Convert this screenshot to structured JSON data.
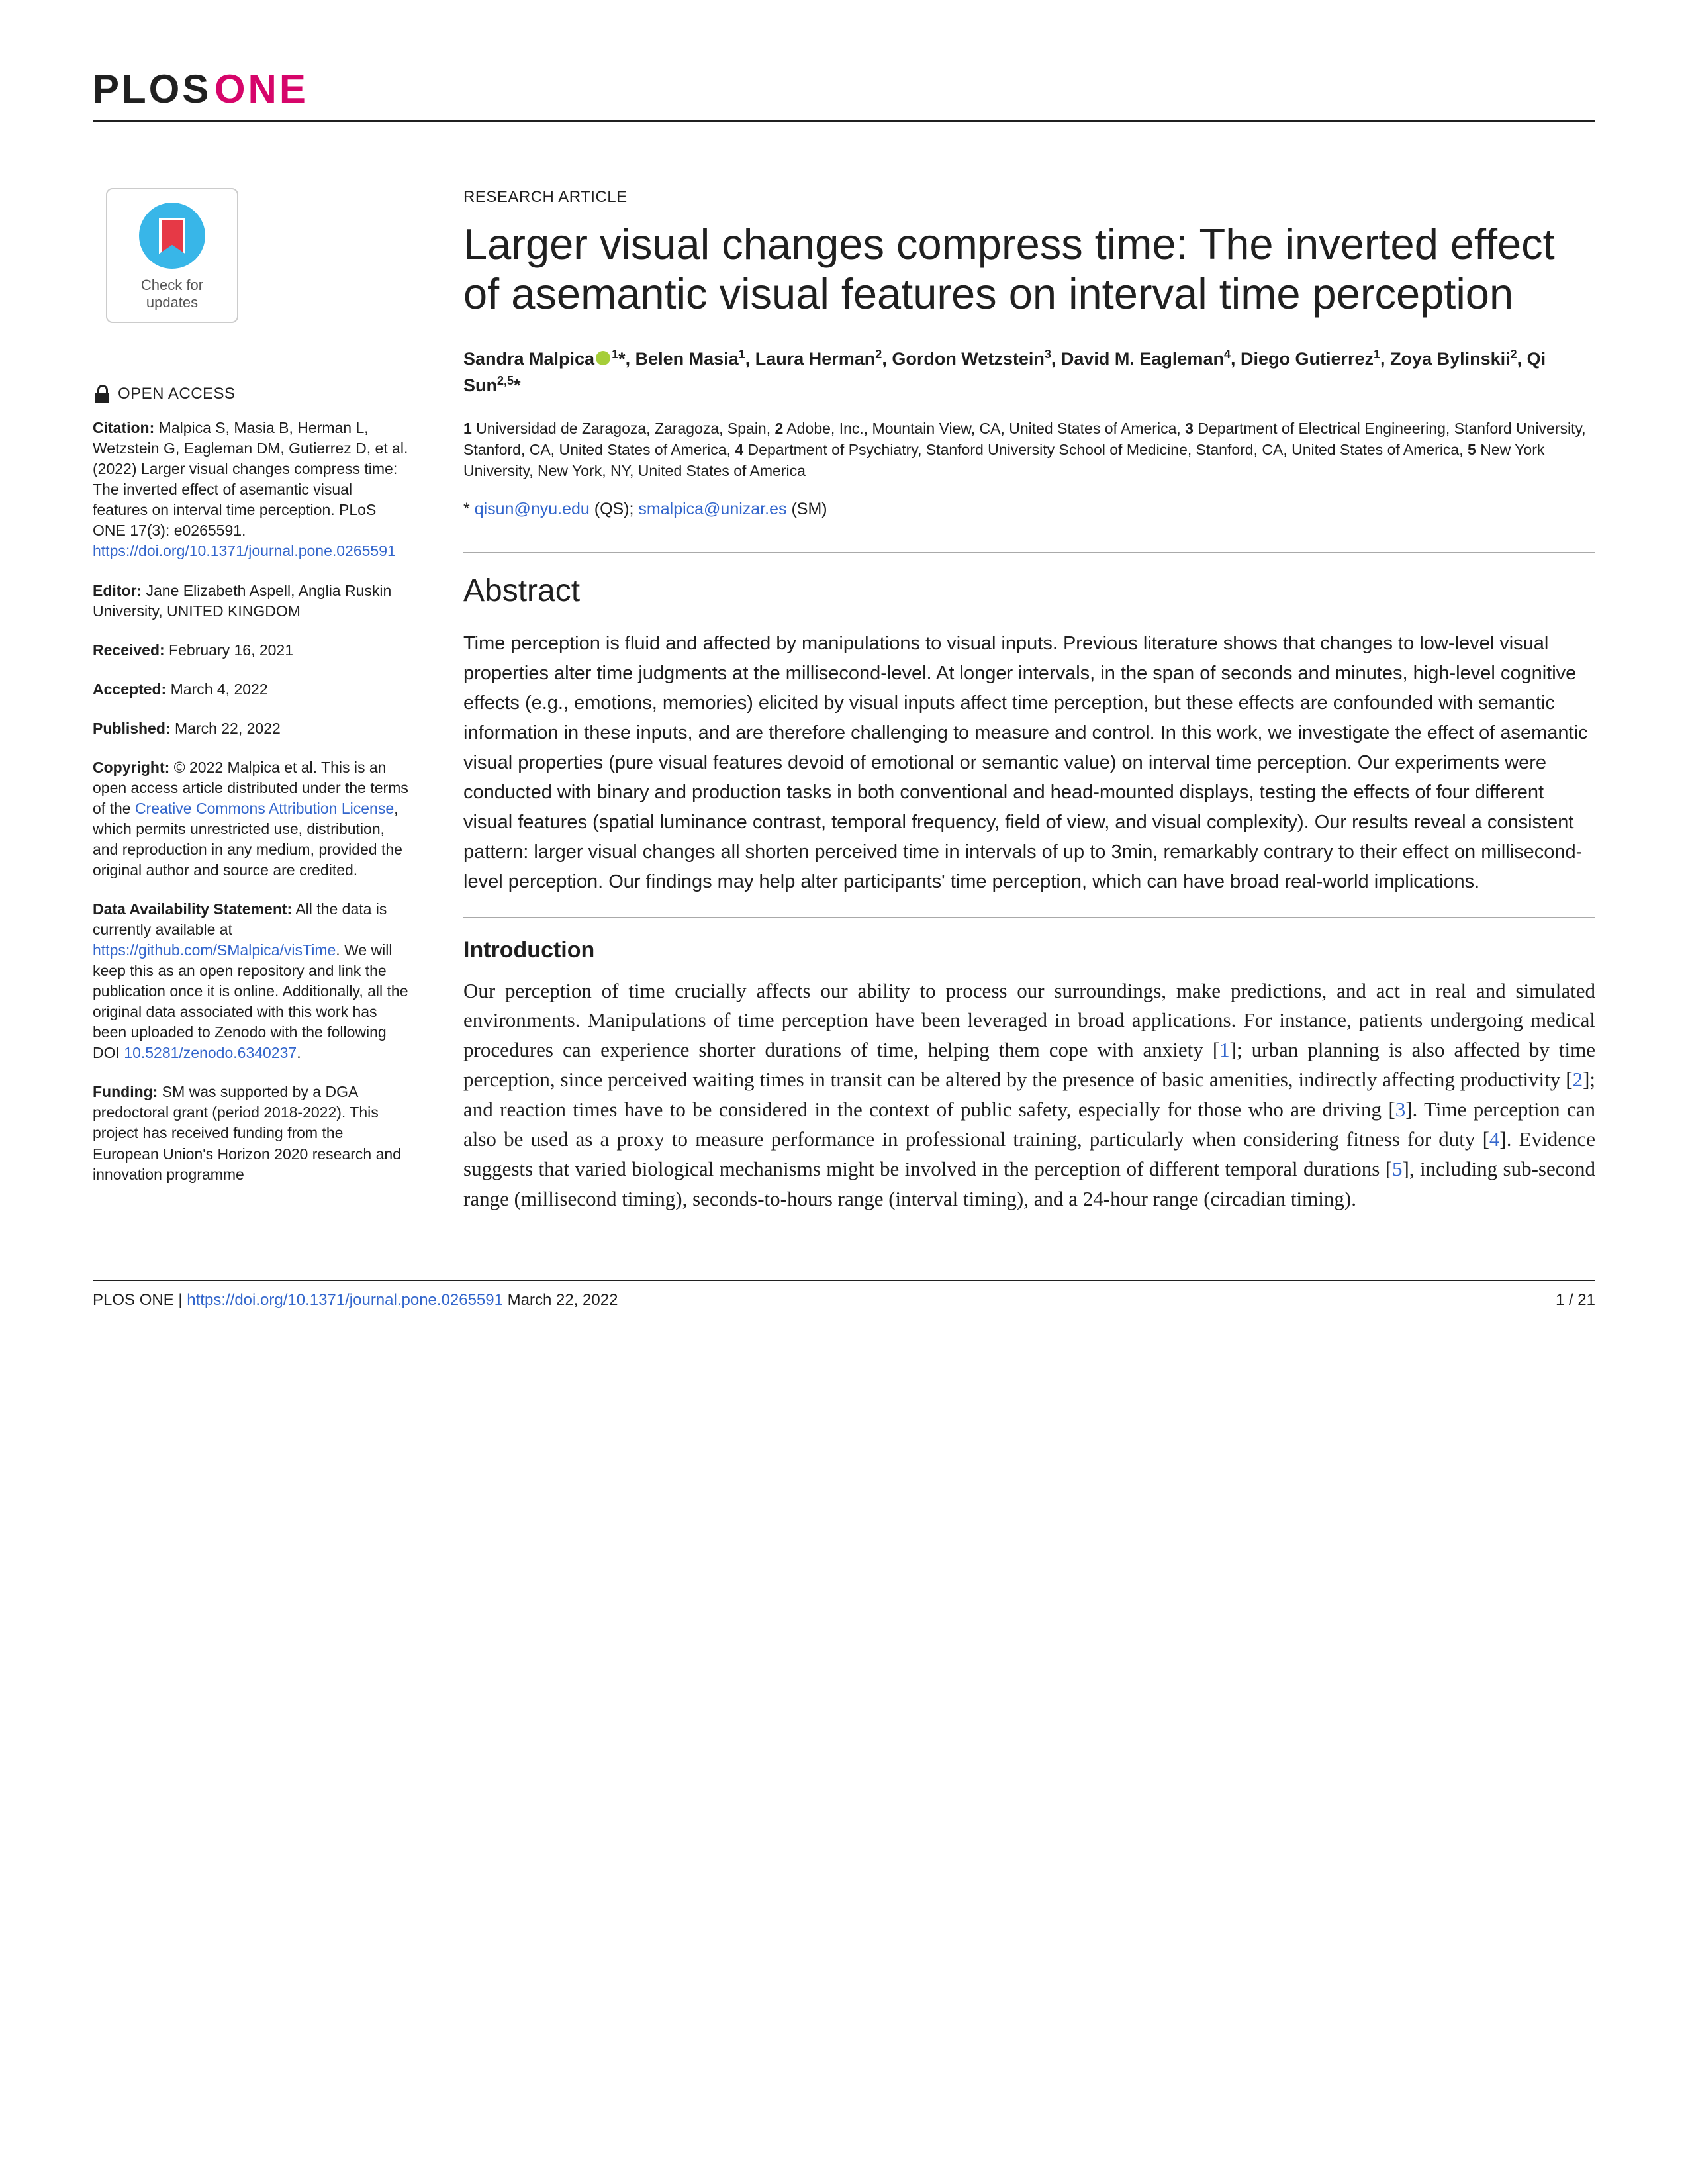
{
  "journal": {
    "plos": "PLOS",
    "one": "ONE"
  },
  "updates": {
    "line1": "Check for",
    "line2": "updates"
  },
  "oa": {
    "label": "OPEN ACCESS"
  },
  "citation": {
    "label": "Citation:",
    "text": " Malpica S, Masia B, Herman L, Wetzstein G, Eagleman DM, Gutierrez D, et al. (2022) Larger visual changes compress time: The inverted effect of asemantic visual features on interval time perception. PLoS ONE 17(3): e0265591. ",
    "link": "https://doi.org/10.1371/journal.pone.0265591"
  },
  "editor": {
    "label": "Editor:",
    "text": " Jane Elizabeth Aspell, Anglia Ruskin University, UNITED KINGDOM"
  },
  "received": {
    "label": "Received:",
    "text": " February 16, 2021"
  },
  "accepted": {
    "label": "Accepted:",
    "text": " March 4, 2022"
  },
  "published": {
    "label": "Published:",
    "text": " March 22, 2022"
  },
  "copyright": {
    "label": "Copyright:",
    "before": " © 2022 Malpica et al. This is an open access article distributed under the terms of the ",
    "link": "Creative Commons Attribution License",
    "after": ", which permits unrestricted use, distribution, and reproduction in any medium, provided the original author and source are credited."
  },
  "data": {
    "label": "Data Availability Statement:",
    "before": " All the data is currently available at ",
    "link1": "https://github.com/SMalpica/visTime",
    "mid": ". We will keep this as an open repository and link the publication once it is online. Additionally, all the original data associated with this work has been uploaded to Zenodo with the following DOI ",
    "link2": "10.5281/zenodo.6340237",
    "after": "."
  },
  "funding": {
    "label": "Funding:",
    "text": " SM was supported by a DGA predoctoral grant (period 2018-2022). This project has received funding from the European Union's Horizon 2020 research and innovation programme"
  },
  "article_type": "RESEARCH ARTICLE",
  "title": "Larger visual changes compress time: The inverted effect of asemantic visual features on interval time perception",
  "authors": {
    "a1": "Sandra Malpica",
    "s1": "1",
    "star1": "*, ",
    "a2": "Belen Masia",
    "s2": "1",
    "c2": ", ",
    "a3": "Laura Herman",
    "s3": "2",
    "c3": ", ",
    "a4": "Gordon Wetzstein",
    "s4": "3",
    "c4": ", ",
    "a5": "David M. Eagleman",
    "s5": "4",
    "c5": ", ",
    "a6": "Diego Gutierrez",
    "s6": "1",
    "c6": ", ",
    "a7": "Zoya Bylinskii",
    "s7": "2",
    "c7": ", ",
    "a8": "Qi Sun",
    "s8": "2,5",
    "star8": "*"
  },
  "affiliations": {
    "n1": "1",
    "t1": " Universidad de Zaragoza, Zaragoza, Spain, ",
    "n2": "2",
    "t2": " Adobe, Inc., Mountain View, CA, United States of America, ",
    "n3": "3",
    "t3": " Department of Electrical Engineering, Stanford University, Stanford, CA, United States of America, ",
    "n4": "4",
    "t4": " Department of Psychiatry, Stanford University School of Medicine, Stanford, CA, United States of America, ",
    "n5": "5",
    "t5": " New York University, New York, NY, United States of America"
  },
  "correspondence": {
    "star": "* ",
    "email1": "qisun@nyu.edu",
    "mid1": " (QS); ",
    "email2": "smalpica@unizar.es",
    "mid2": " (SM)"
  },
  "abstract": {
    "heading": "Abstract",
    "text": "Time perception is fluid and affected by manipulations to visual inputs. Previous literature shows that changes to low-level visual properties alter time judgments at the millisecond-level. At longer intervals, in the span of seconds and minutes, high-level cognitive effects (e.g., emotions, memories) elicited by visual inputs affect time perception, but these effects are confounded with semantic information in these inputs, and are therefore challenging to measure and control. In this work, we investigate the effect of asemantic visual properties (pure visual features devoid of emotional or semantic value) on interval time perception. Our experiments were conducted with binary and production tasks in both conventional and head-mounted displays, testing the effects of four different visual features (spatial luminance contrast, temporal frequency, field of view, and visual complexity). Our results reveal a consistent pattern: larger visual changes all shorten perceived time in intervals of up to 3min, remarkably contrary to their effect on millisecond-level perception. Our findings may help alter participants' time perception, which can have broad real-world implications."
  },
  "intro": {
    "heading": "Introduction",
    "p1a": "Our perception of time crucially affects our ability to process our surroundings, make predictions, and act in real and simulated environments. Manipulations of time perception have been leveraged in broad applications. For instance, patients undergoing medical procedures can experience shorter durations of time, helping them cope with anxiety [",
    "r1": "1",
    "p1b": "]; urban planning is also affected by time perception, since perceived waiting times in transit can be altered by the presence of basic amenities, indirectly affecting productivity [",
    "r2": "2",
    "p1c": "]; and reaction times have to be considered in the context of public safety, especially for those who are driving [",
    "r3": "3",
    "p1d": "]. Time perception can also be used as a proxy to measure performance in professional training, particularly when considering fitness for duty [",
    "r4": "4",
    "p1e": "]. Evidence suggests that varied biological mechanisms might be involved in the perception of different temporal durations [",
    "r5": "5",
    "p1f": "], including sub-second range (millisecond timing), seconds-to-hours range (interval timing), and a 24-hour range (circadian timing)."
  },
  "footer": {
    "left_prefix": "PLOS ONE | ",
    "doi": "https://doi.org/10.1371/journal.pone.0265591",
    "date": "   March 22, 2022",
    "page": "1 / 21"
  }
}
